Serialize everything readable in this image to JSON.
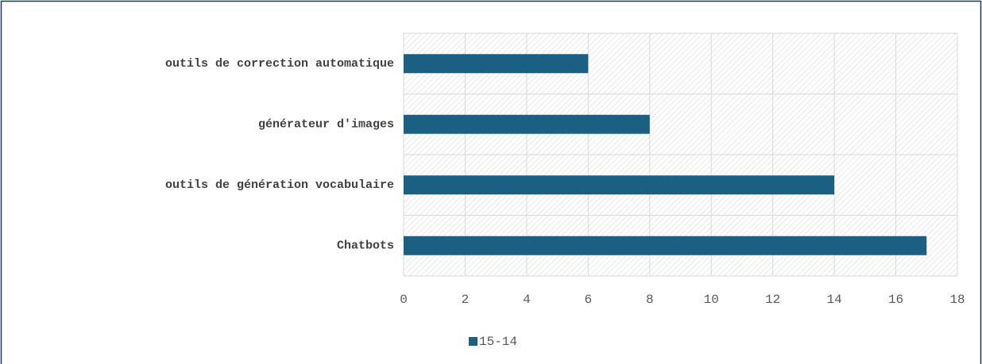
{
  "chart_data": {
    "type": "barh",
    "categories": [
      "outils de correction automatique",
      "générateur d'images",
      "outils de génération vocabulaire",
      "Chatbots"
    ],
    "series": [
      {
        "name": "15-14",
        "color": "#1b5f82",
        "values": [
          6,
          8,
          14,
          17
        ]
      }
    ],
    "xlim": [
      0,
      18
    ],
    "xticks": [
      0,
      2,
      4,
      6,
      8,
      10,
      12,
      14,
      16,
      18
    ],
    "grid": true,
    "legend": "bottom"
  }
}
